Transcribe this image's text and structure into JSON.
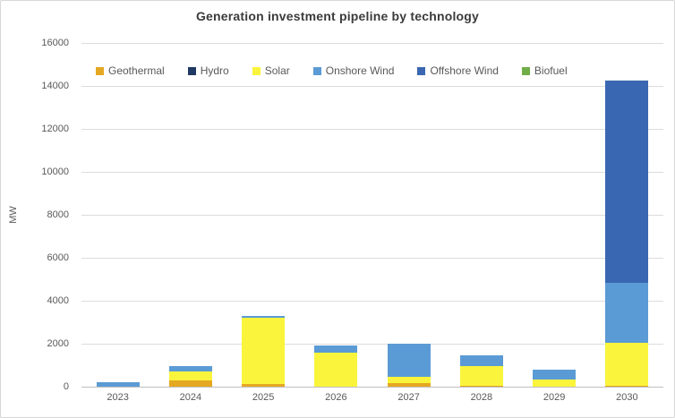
{
  "chart_data": {
    "type": "bar",
    "stacked": true,
    "title": "Generation investment pipeline by technology",
    "xlabel": "",
    "ylabel": "MW",
    "ylim": [
      0,
      16000
    ],
    "ytick_step": 2000,
    "grid": true,
    "legend_position": "top",
    "categories": [
      "2023",
      "2024",
      "2025",
      "2026",
      "2027",
      "2028",
      "2029",
      "2030"
    ],
    "series": [
      {
        "name": "Geothermal",
        "color": "#e5a823",
        "values": [
          0,
          300,
          120,
          0,
          150,
          60,
          0,
          50
        ]
      },
      {
        "name": "Hydro",
        "color": "#1f3864",
        "values": [
          0,
          0,
          0,
          0,
          0,
          0,
          0,
          0
        ]
      },
      {
        "name": "Solar",
        "color": "#faf53c",
        "values": [
          0,
          400,
          3100,
          1600,
          300,
          900,
          350,
          2000
        ]
      },
      {
        "name": "Onshore Wind",
        "color": "#5b9bd5",
        "values": [
          200,
          250,
          80,
          300,
          1550,
          500,
          450,
          2800
        ]
      },
      {
        "name": "Offshore Wind",
        "color": "#3a67b1",
        "values": [
          0,
          0,
          0,
          0,
          0,
          0,
          0,
          9400
        ]
      },
      {
        "name": "Biofuel",
        "color": "#70ad47",
        "values": [
          0,
          0,
          0,
          0,
          0,
          0,
          0,
          0
        ]
      }
    ]
  }
}
